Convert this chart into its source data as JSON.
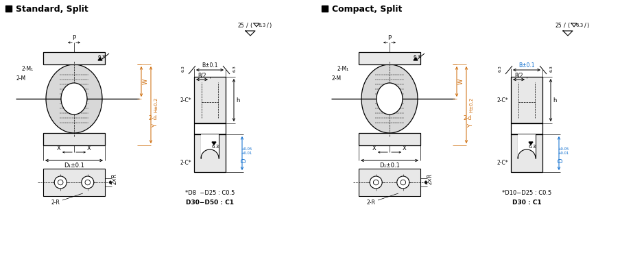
{
  "bg_color": "#ffffff",
  "title_standard": "Standard, Split",
  "title_compact": "Compact, Split",
  "note_standard_1": "*D8  −D25 : C0.5",
  "note_standard_2": "D30−D50 : C1",
  "note_compact_1": "*D10−D25 : C0.5",
  "note_compact_2": "D30 : C1",
  "dim_color": "#cc6600",
  "blue_color": "#0066cc",
  "line_color": "#000000",
  "gray_fill": "#d8d8d8",
  "light_gray": "#e8e8e8"
}
